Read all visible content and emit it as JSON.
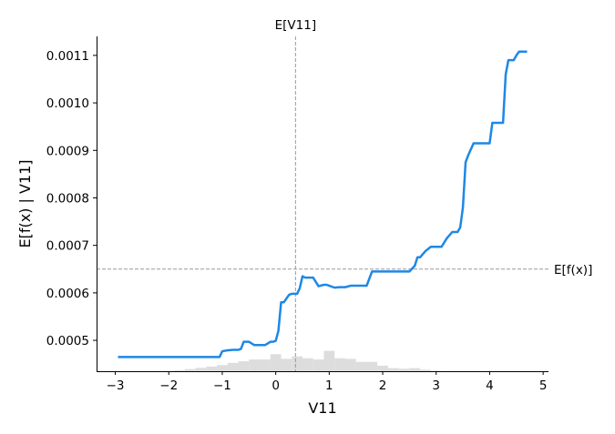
{
  "chart_data": {
    "type": "line",
    "title": "",
    "xlabel": "V11",
    "ylabel": "E[f(x) | V11]",
    "xlim": [
      -3.35,
      5.1
    ],
    "ylim": [
      0.000435,
      0.00114
    ],
    "x_ticks": [
      -3,
      -2,
      -1,
      0,
      1,
      2,
      3,
      4,
      5
    ],
    "x_tick_labels": [
      "−3",
      "−2",
      "−1",
      "0",
      "1",
      "2",
      "3",
      "4",
      "5"
    ],
    "y_ticks": [
      0.0005,
      0.0006,
      0.0007,
      0.0008,
      0.0009,
      0.001,
      0.0011
    ],
    "y_tick_labels": [
      "0.0005",
      "0.0006",
      "0.0007",
      "0.0008",
      "0.0009",
      "0.0010",
      "0.0011"
    ],
    "grid": false,
    "colors": {
      "line": "#1e88e5",
      "reference": "#999999",
      "histogram": "#dddddd"
    },
    "expected_value_x": {
      "label": "E[V11]",
      "value": 0.37
    },
    "expected_value_y": {
      "label": "E[f(x)]",
      "value": 0.00065
    },
    "series": [
      {
        "x": [
          -2.95,
          -2.0,
          -1.05,
          -1.0,
          -0.9,
          -0.8,
          -0.7,
          -0.65,
          -0.6,
          -0.5,
          -0.4,
          -0.35,
          -0.2,
          -0.1,
          -0.05,
          0.0,
          0.05,
          0.1,
          0.15,
          0.2,
          0.25,
          0.3,
          0.4,
          0.45,
          0.5,
          0.55,
          0.6,
          0.7,
          0.8,
          0.9,
          0.95,
          1.0,
          1.1,
          1.2,
          1.3,
          1.4,
          1.5,
          1.6,
          1.7,
          1.8,
          1.85,
          2.0,
          2.2,
          2.4,
          2.5,
          2.6,
          2.65,
          2.7,
          2.8,
          2.9,
          3.0,
          3.1,
          3.2,
          3.3,
          3.4,
          3.45,
          3.5,
          3.55,
          3.6,
          3.7,
          3.8,
          3.9,
          4.0,
          4.05,
          4.15,
          4.25,
          4.3,
          4.35,
          4.4,
          4.45,
          4.5,
          4.55,
          4.6,
          4.7
        ],
        "y": [
          0.000465,
          0.000465,
          0.000465,
          0.000477,
          0.000479,
          0.00048,
          0.00048,
          0.000482,
          0.000497,
          0.000497,
          0.00049,
          0.00049,
          0.00049,
          0.000497,
          0.000497,
          0.000499,
          0.00052,
          0.00058,
          0.00058,
          0.000588,
          0.000596,
          0.000598,
          0.000598,
          0.00061,
          0.000635,
          0.000632,
          0.000632,
          0.000632,
          0.000614,
          0.000617,
          0.000617,
          0.000615,
          0.000611,
          0.000612,
          0.000612,
          0.000615,
          0.000615,
          0.000615,
          0.000615,
          0.000645,
          0.000645,
          0.000645,
          0.000645,
          0.000645,
          0.000645,
          0.000657,
          0.000675,
          0.000675,
          0.000688,
          0.000697,
          0.000697,
          0.000697,
          0.000715,
          0.000728,
          0.000728,
          0.000738,
          0.00078,
          0.000875,
          0.00089,
          0.000915,
          0.000915,
          0.000915,
          0.000915,
          0.000958,
          0.000958,
          0.000958,
          0.00106,
          0.00109,
          0.00109,
          0.00109,
          0.0011,
          0.001108,
          0.001108,
          0.001108
        ]
      }
    ],
    "histogram": {
      "bin_width": 0.2,
      "bin_starts": [
        -1.9,
        -1.7,
        -1.5,
        -1.3,
        -1.1,
        -0.9,
        -0.7,
        -0.5,
        -0.3,
        -0.1,
        0.1,
        0.3,
        0.5,
        0.7,
        0.9,
        1.1,
        1.3,
        1.5,
        1.7,
        1.9,
        2.1,
        2.3,
        2.5,
        2.7,
        2.9
      ],
      "relative_heights": [
        0.03,
        0.07,
        0.11,
        0.15,
        0.2,
        0.27,
        0.32,
        0.38,
        0.38,
        0.55,
        0.4,
        0.48,
        0.42,
        0.38,
        0.66,
        0.42,
        0.4,
        0.3,
        0.3,
        0.18,
        0.1,
        0.08,
        0.1,
        0.05,
        0.02
      ]
    }
  }
}
